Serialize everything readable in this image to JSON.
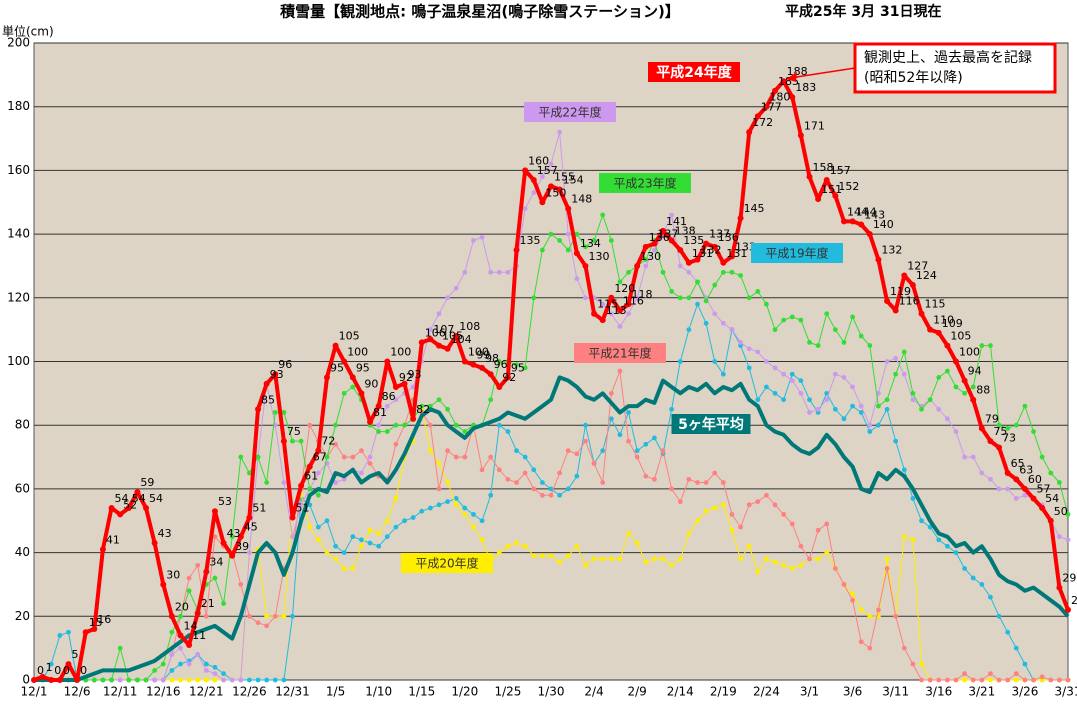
{
  "chart_data": {
    "type": "line",
    "title": "積雪量【観測地点: 鳴子温泉星沼(鳴子除雪ステーション)】",
    "subtitle": "平成25年 3月 31日現在",
    "y_label": "単位(cm)",
    "annotation": [
      "観測史上、過去最高を記録",
      "(昭和52年以降)"
    ],
    "ylim": [
      0,
      200
    ],
    "yticks": [
      0,
      20,
      40,
      60,
      80,
      100,
      120,
      140,
      160,
      180,
      200
    ],
    "grid": true,
    "categories": [
      "12/1",
      null,
      null,
      null,
      null,
      "12/6",
      null,
      null,
      null,
      null,
      "12/11",
      null,
      null,
      null,
      null,
      "12/16",
      null,
      null,
      null,
      null,
      "12/21",
      null,
      null,
      null,
      null,
      "12/26",
      null,
      null,
      null,
      null,
      "12/31",
      null,
      null,
      null,
      null,
      "1/5",
      null,
      null,
      null,
      null,
      "1/10",
      null,
      null,
      null,
      null,
      "1/15",
      null,
      null,
      null,
      null,
      "1/20",
      null,
      null,
      null,
      null,
      "1/25",
      null,
      null,
      null,
      null,
      "1/30",
      null,
      null,
      null,
      null,
      "2/4",
      null,
      null,
      null,
      null,
      "2/9",
      null,
      null,
      null,
      null,
      "2/14",
      null,
      null,
      null,
      null,
      "2/19",
      null,
      null,
      null,
      null,
      "2/24",
      null,
      null,
      null,
      null,
      "3/1",
      null,
      null,
      null,
      null,
      "3/6",
      null,
      null,
      null,
      null,
      "3/11",
      null,
      null,
      null,
      null,
      "3/16",
      null,
      null,
      null,
      null,
      "3/21",
      null,
      null,
      null,
      null,
      "3/26",
      null,
      null,
      null,
      null,
      "3/31"
    ],
    "series": [
      {
        "name": "平成19年度",
        "color": "#22bbdd",
        "line_width": 1,
        "markers": true,
        "values": [
          0,
          0,
          5,
          14,
          15,
          0,
          0,
          0,
          0,
          0,
          0,
          0,
          0,
          0,
          0,
          0,
          3,
          5,
          6,
          8,
          5,
          4,
          2,
          0,
          0,
          0,
          0,
          0,
          0,
          0,
          20,
          57,
          55,
          48,
          50,
          42,
          40,
          45,
          44,
          43,
          42,
          45,
          48,
          50,
          51,
          53,
          54,
          55,
          56,
          57,
          54,
          52,
          50,
          58,
          80,
          78,
          72,
          70,
          66,
          62,
          60,
          58,
          60,
          64,
          80,
          68,
          72,
          82,
          77,
          84,
          72,
          74,
          76,
          71,
          85,
          100,
          110,
          118,
          112,
          100,
          96,
          110,
          105,
          98,
          88,
          92,
          90,
          88,
          96,
          94,
          88,
          84,
          90,
          85,
          82,
          86,
          84,
          78,
          80,
          85,
          75,
          66,
          57,
          50,
          48,
          44,
          42,
          40,
          35,
          32,
          30,
          26,
          20,
          15,
          10,
          5,
          0,
          0,
          0,
          0,
          0
        ]
      },
      {
        "name": "平成20年度",
        "color": "#ffee00",
        "line_width": 1,
        "markers": true,
        "values": [
          0,
          0,
          0,
          0,
          0,
          0,
          0,
          0,
          0,
          0,
          0,
          0,
          0,
          0,
          0,
          0,
          0,
          0,
          0,
          0,
          0,
          0,
          0,
          0,
          0,
          40,
          41,
          20,
          20,
          20,
          53,
          58,
          48,
          44,
          40,
          38,
          35,
          35,
          42,
          47,
          46,
          50,
          57,
          70,
          75,
          85,
          72,
          68,
          62,
          55,
          52,
          48,
          44,
          37,
          40,
          42,
          43,
          42,
          39,
          39,
          39,
          37,
          39,
          42,
          36,
          38,
          38,
          38,
          38,
          46,
          43,
          37,
          38,
          38,
          36,
          38,
          46,
          50,
          53,
          54,
          55,
          47,
          38,
          42,
          34,
          38,
          37,
          36,
          35,
          36,
          38,
          38,
          40,
          35,
          30,
          27,
          22,
          20,
          20,
          38,
          20,
          45,
          44,
          5,
          0,
          0,
          0,
          0,
          0,
          0,
          0,
          0,
          0,
          0,
          0,
          0,
          0,
          0,
          0,
          0,
          0
        ]
      },
      {
        "name": "平成21年度",
        "color": "#ff8080",
        "line_width": 1,
        "markers": true,
        "values": [
          0,
          0,
          0,
          0,
          0,
          0,
          0,
          0,
          0,
          0,
          0,
          0,
          0,
          0,
          0,
          0,
          8,
          20,
          32,
          36,
          20,
          45,
          42,
          40,
          30,
          20,
          18,
          17,
          20,
          35,
          40,
          60,
          80,
          75,
          70,
          74,
          70,
          70,
          72,
          68,
          64,
          63,
          74,
          80,
          88,
          84,
          80,
          60,
          72,
          70,
          70,
          80,
          66,
          70,
          66,
          63,
          62,
          65,
          60,
          58,
          58,
          65,
          72,
          71,
          75,
          68,
          62,
          90,
          97,
          75,
          70,
          64,
          63,
          72,
          60,
          56,
          63,
          62,
          62,
          65,
          62,
          52,
          48,
          55,
          56,
          58,
          55,
          52,
          49,
          42,
          38,
          47,
          49,
          35,
          30,
          25,
          12,
          10,
          22,
          35,
          20,
          10,
          5,
          0,
          0,
          0,
          0,
          0,
          2,
          0,
          0,
          2,
          0,
          0,
          2,
          0,
          0,
          1,
          0,
          0,
          0
        ]
      },
      {
        "name": "平成22年度",
        "color": "#cc99ee",
        "line_width": 1,
        "markers": true,
        "values": [
          0,
          0,
          0,
          0,
          0,
          0,
          0,
          0,
          0,
          0,
          0,
          0,
          0,
          0,
          0,
          0,
          8,
          10,
          5,
          8,
          3,
          2,
          0,
          0,
          0,
          40,
          70,
          93,
          80,
          62,
          45,
          55,
          60,
          65,
          68,
          62,
          63,
          66,
          65,
          70,
          80,
          86,
          88,
          90,
          92,
          100,
          110,
          115,
          120,
          123,
          128,
          138,
          139,
          128,
          128,
          128,
          130,
          148,
          153,
          158,
          162,
          172,
          140,
          126,
          120,
          120,
          118,
          115,
          111,
          115,
          120,
          130,
          135,
          140,
          146,
          130,
          128,
          125,
          120,
          115,
          112,
          110,
          106,
          104,
          103,
          100,
          98,
          96,
          94,
          90,
          84,
          85,
          88,
          96,
          95,
          92,
          86,
          80,
          90,
          100,
          101,
          96,
          88,
          86,
          88,
          85,
          82,
          78,
          70,
          70,
          65,
          63,
          60,
          60,
          57,
          58,
          57,
          55,
          50,
          45,
          44
        ]
      },
      {
        "name": "平成23年度",
        "color": "#33dd33",
        "line_width": 1,
        "markers": true,
        "values": [
          0,
          0,
          0,
          0,
          0,
          0,
          0,
          0,
          0,
          0,
          10,
          0,
          0,
          0,
          3,
          5,
          15,
          20,
          28,
          22,
          30,
          32,
          24,
          45,
          70,
          65,
          70,
          62,
          84,
          84,
          75,
          75,
          60,
          58,
          70,
          80,
          90,
          92,
          88,
          80,
          78,
          78,
          80,
          80,
          82,
          86,
          86,
          88,
          85,
          80,
          78,
          80,
          80,
          88,
          100,
          100,
          99,
          98,
          120,
          135,
          140,
          138,
          135,
          140,
          136,
          138,
          146,
          138,
          125,
          128,
          130,
          132,
          138,
          128,
          122,
          120,
          120,
          125,
          119,
          124,
          128,
          128,
          127,
          120,
          122,
          118,
          110,
          113,
          114,
          113,
          106,
          105,
          115,
          110,
          106,
          114,
          108,
          105,
          86,
          88,
          96,
          103,
          90,
          85,
          88,
          95,
          97,
          92,
          90,
          92,
          105,
          105,
          80,
          79,
          80,
          86,
          78,
          70,
          65,
          62,
          52
        ]
      },
      {
        "name": "5ヶ年平均",
        "color": "#007878",
        "line_width": 4,
        "markers": false,
        "values": [
          0,
          0,
          0,
          0,
          0,
          0,
          1,
          2,
          3,
          3,
          3,
          3,
          4,
          5,
          6,
          8,
          10,
          12,
          14,
          15,
          16,
          17,
          15,
          13,
          20,
          30,
          40,
          43,
          40,
          33,
          40,
          50,
          58,
          60,
          59,
          65,
          64,
          66,
          62,
          64,
          65,
          62,
          66,
          71,
          77,
          83,
          85,
          84,
          80,
          78,
          76,
          79,
          80,
          81,
          82,
          84,
          83,
          82,
          84,
          86,
          88,
          95,
          94,
          92,
          89,
          88,
          90,
          87,
          84,
          86,
          86,
          88,
          87,
          94,
          92,
          90,
          92,
          91,
          93,
          90,
          92,
          91,
          93,
          88,
          86,
          80,
          78,
          77,
          74,
          72,
          71,
          73,
          77,
          74,
          70,
          67,
          60,
          59,
          65,
          63,
          66,
          64,
          60,
          55,
          50,
          46,
          45,
          42,
          43,
          40,
          42,
          38,
          33,
          31,
          30,
          28,
          29,
          27,
          25,
          23,
          20
        ]
      },
      {
        "name": "平成24年度",
        "color": "#ff0000",
        "line_width": 4,
        "markers": true,
        "show_values": true,
        "values": [
          0,
          1,
          0,
          0,
          5,
          0,
          15,
          16,
          41,
          54,
          52,
          54,
          59,
          54,
          43,
          30,
          20,
          14,
          11,
          21,
          34,
          53,
          43,
          39,
          45,
          51,
          85,
          93,
          96,
          75,
          51,
          61,
          67,
          72,
          95,
          105,
          100,
          95,
          90,
          81,
          86,
          100,
          92,
          93,
          82,
          106,
          107,
          105,
          104,
          108,
          100,
          99,
          98,
          96,
          92,
          95,
          135,
          160,
          157,
          150,
          155,
          154,
          148,
          134,
          130,
          115,
          113,
          120,
          116,
          118,
          130,
          136,
          137,
          141,
          138,
          135,
          131,
          132,
          137,
          136,
          131,
          133,
          145,
          172,
          177,
          180,
          185,
          188,
          183,
          171,
          158,
          151,
          157,
          152,
          144,
          144,
          143,
          140,
          132,
          119,
          116,
          127,
          124,
          115,
          110,
          109,
          105,
          100,
          94,
          88,
          79,
          75,
          73,
          65,
          63,
          60,
          57,
          54,
          50,
          29,
          22
        ]
      }
    ]
  }
}
